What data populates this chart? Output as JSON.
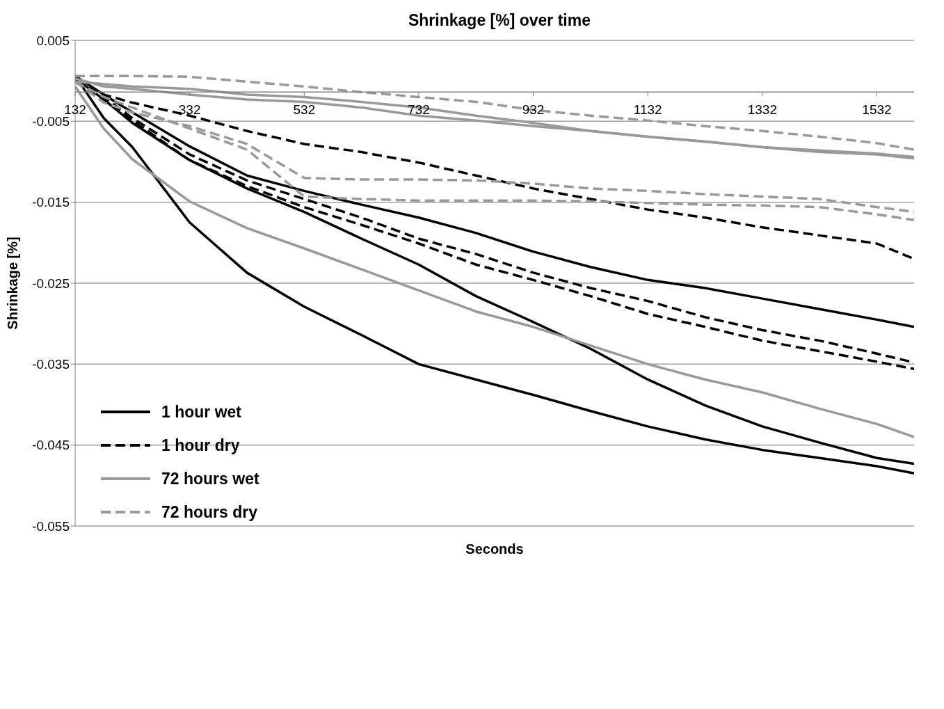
{
  "chart_data": {
    "type": "line",
    "title": "Shrinkage [%] over time",
    "xlabel": "Seconds",
    "ylabel": "Shrinkage [%]",
    "x": [
      132,
      182,
      232,
      332,
      432,
      532,
      632,
      732,
      832,
      932,
      1032,
      1132,
      1232,
      1332,
      1432,
      1532,
      1597
    ],
    "xlim": [
      132,
      1597
    ],
    "xticks": [
      132,
      332,
      532,
      732,
      932,
      1132,
      1332,
      1532
    ],
    "ylim": [
      -0.055,
      0.005
    ],
    "yticks": [
      0.005,
      -0.005,
      -0.015,
      -0.025,
      -0.035,
      -0.045,
      -0.055
    ],
    "grid": "y",
    "legend": "left",
    "marker": "none",
    "series": [
      {
        "name": "1 hour wet",
        "color": "#000000",
        "line_style": "solid",
        "values": [
          0.0006,
          -0.0046,
          -0.0082,
          -0.0175,
          -0.0237,
          -0.0279,
          -0.0314,
          -0.035,
          -0.0369,
          -0.0388,
          -0.0408,
          -0.0427,
          -0.0443,
          -0.0456,
          -0.0466,
          -0.0476,
          -0.0485
        ]
      },
      {
        "color": "#000000",
        "line_style": "solid",
        "values": [
          0.0003,
          -0.0023,
          -0.0052,
          -0.0098,
          -0.0133,
          -0.0162,
          -0.0195,
          -0.0227,
          -0.0266,
          -0.0298,
          -0.0331,
          -0.0369,
          -0.0401,
          -0.0427,
          -0.0447,
          -0.0466,
          -0.0473
        ]
      },
      {
        "color": "#000000",
        "line_style": "solid",
        "values": [
          0.0006,
          -0.0017,
          -0.0039,
          -0.0081,
          -0.0117,
          -0.0136,
          -0.0153,
          -0.0169,
          -0.0188,
          -0.0211,
          -0.023,
          -0.0246,
          -0.0256,
          -0.0269,
          -0.0282,
          -0.0295,
          -0.0304
        ]
      },
      {
        "name": "1 hour dry",
        "color": "#000000",
        "line_style": "dashed",
        "values": [
          -0.0001,
          -0.0023,
          -0.0049,
          -0.0098,
          -0.013,
          -0.0156,
          -0.0178,
          -0.0201,
          -0.0227,
          -0.0246,
          -0.0266,
          -0.0288,
          -0.0304,
          -0.0321,
          -0.0334,
          -0.0347,
          -0.0356
        ]
      },
      {
        "color": "#000000",
        "line_style": "dashed",
        "values": [
          -0.0001,
          -0.002,
          -0.0046,
          -0.0091,
          -0.0123,
          -0.0146,
          -0.0169,
          -0.0195,
          -0.0214,
          -0.0237,
          -0.0256,
          -0.0272,
          -0.0292,
          -0.0308,
          -0.0321,
          -0.0337,
          -0.0348
        ]
      },
      {
        "color": "#000000",
        "line_style": "dashed",
        "values": [
          -0.0001,
          -0.0017,
          -0.0027,
          -0.0043,
          -0.0062,
          -0.0078,
          -0.0088,
          -0.0101,
          -0.0117,
          -0.0133,
          -0.0146,
          -0.0159,
          -0.0169,
          -0.0181,
          -0.0191,
          -0.0201,
          -0.022
        ]
      },
      {
        "name": "72 hours wet",
        "color": "#999999",
        "line_style": "solid",
        "values": [
          -0.0007,
          -0.0059,
          -0.0097,
          -0.0149,
          -0.0182,
          -0.0207,
          -0.0233,
          -0.0259,
          -0.0285,
          -0.0304,
          -0.0327,
          -0.035,
          -0.0369,
          -0.0385,
          -0.0405,
          -0.0424,
          -0.044
        ]
      },
      {
        "color": "#999999",
        "line_style": "solid",
        "values": [
          0.0003,
          -0.0007,
          -0.001,
          -0.0017,
          -0.0023,
          -0.0026,
          -0.0033,
          -0.0043,
          -0.0049,
          -0.0056,
          -0.0062,
          -0.0069,
          -0.0075,
          -0.0082,
          -0.0088,
          -0.0091,
          -0.0096
        ]
      },
      {
        "color": "#999999",
        "line_style": "solid",
        "values": [
          -0.0001,
          -0.0004,
          -0.0007,
          -0.001,
          -0.0017,
          -0.002,
          -0.0026,
          -0.0033,
          -0.0043,
          -0.0052,
          -0.0062,
          -0.0069,
          -0.0075,
          -0.0082,
          -0.0086,
          -0.009,
          -0.0094
        ]
      },
      {
        "name": "72 hours dry",
        "color": "#999999",
        "line_style": "dashed",
        "values": [
          0.0006,
          0.0006,
          0.0006,
          0.0005,
          -0.0001,
          -0.0007,
          -0.0014,
          -0.002,
          -0.0026,
          -0.0036,
          -0.0043,
          -0.0049,
          -0.0056,
          -0.0062,
          -0.0069,
          -0.0077,
          -0.0085
        ]
      },
      {
        "color": "#999999",
        "line_style": "dashed",
        "values": [
          -0.0001,
          -0.0027,
          -0.0039,
          -0.0056,
          -0.0078,
          -0.012,
          -0.0122,
          -0.0122,
          -0.0123,
          -0.0127,
          -0.0133,
          -0.0136,
          -0.014,
          -0.0143,
          -0.0146,
          -0.0156,
          -0.0162
        ]
      },
      {
        "color": "#999999",
        "line_style": "dashed",
        "values": [
          -0.0001,
          -0.002,
          -0.0033,
          -0.0059,
          -0.0085,
          -0.0143,
          -0.0146,
          -0.0148,
          -0.0148,
          -0.0148,
          -0.0149,
          -0.0151,
          -0.0153,
          -0.0154,
          -0.0156,
          -0.0165,
          -0.0172
        ]
      }
    ]
  }
}
